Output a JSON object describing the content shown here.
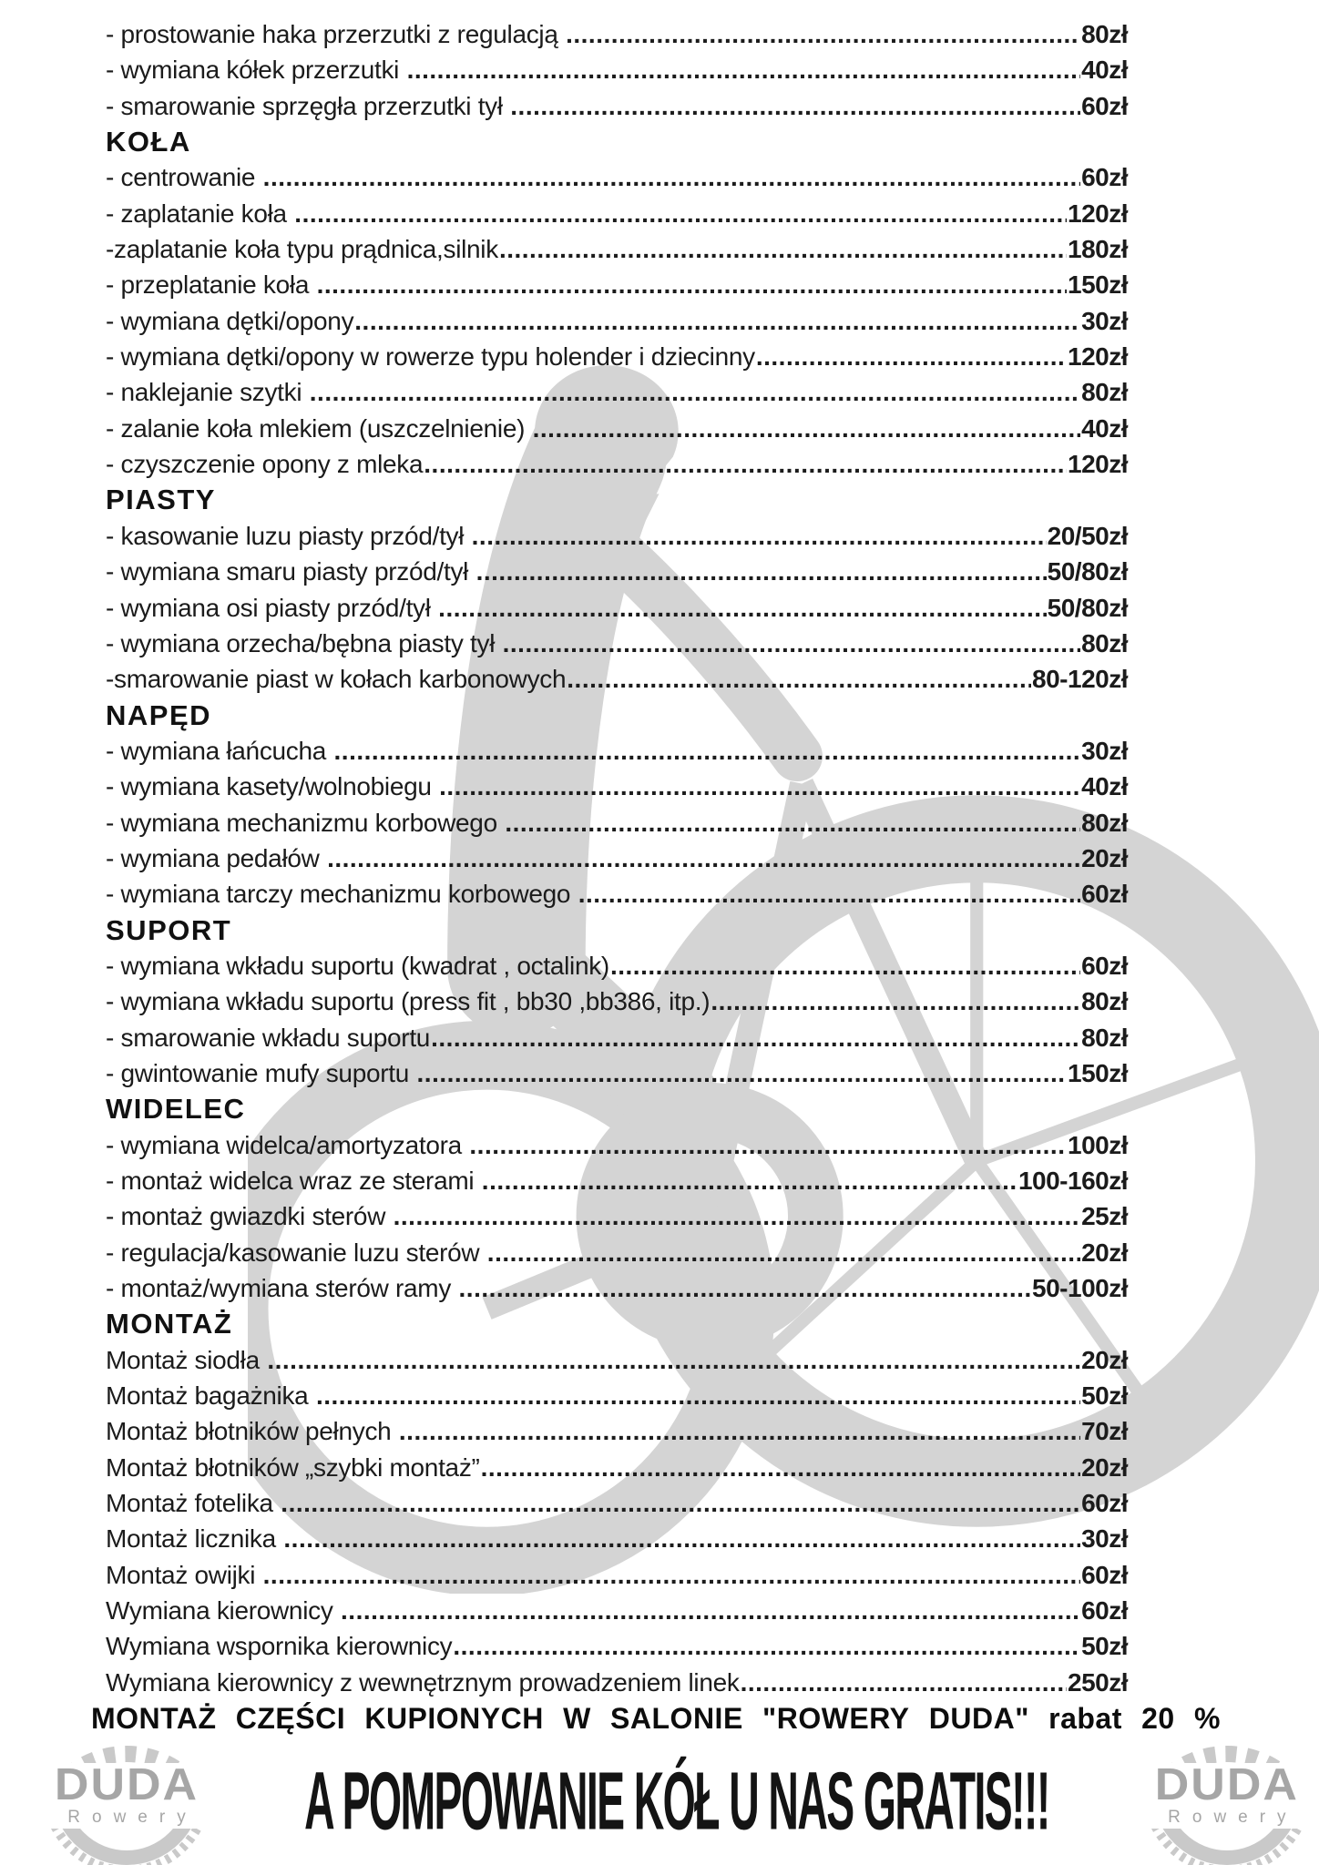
{
  "colors": {
    "text": "#1b1b1b",
    "watermark_gray": "#d4d4d4",
    "logo_gray": "#a6a6a6",
    "chainring_gray": "#c9c9c9"
  },
  "price_list": {
    "sections": [
      {
        "header": "",
        "items": [
          {
            "label": "- prostowanie haka przerzutki z regulacją ",
            "price": "80zł"
          },
          {
            "label": "- wymiana kółek przerzutki ",
            "price": "40zł"
          },
          {
            "label": "- smarowanie sprzęgła przerzutki tył ",
            "price": "60zł"
          }
        ]
      },
      {
        "header": "KOŁA",
        "items": [
          {
            "label": "- centrowanie ",
            "price": "60zł"
          },
          {
            "label": "- zaplatanie koła ",
            "price": "120zł"
          },
          {
            "label": "-zaplatanie koła typu prądnica,silnik",
            "price": "180zł"
          },
          {
            "label": "- przeplatanie koła ",
            "price": "150zł"
          },
          {
            "label": "- wymiana dętki/opony",
            "price": "30zł"
          },
          {
            "label": "- wymiana dętki/opony w rowerze typu holender i dziecinny",
            "price": "120zł"
          },
          {
            "label": "- naklejanie szytki ",
            "price": "80zł"
          },
          {
            "label": "- zalanie koła mlekiem (uszczelnienie) ",
            "price": "40zł"
          },
          {
            "label": "- czyszczenie opony z mleka",
            "price": "120zł"
          }
        ]
      },
      {
        "header": "PIASTY",
        "items": [
          {
            "label": "- kasowanie luzu piasty przód/tył ",
            "price": "20/50zł"
          },
          {
            "label": "- wymiana smaru piasty przód/tył ",
            "price": "50/80zł"
          },
          {
            "label": "- wymiana osi piasty przód/tył ",
            "price": "50/80zł"
          },
          {
            "label": "- wymiana orzecha/bębna piasty tył ",
            "price": "80zł"
          },
          {
            "label": "-smarowanie piast w kołach karbonowych",
            "price": "80-120zł"
          }
        ]
      },
      {
        "header": "NAPĘD",
        "items": [
          {
            "label": "- wymiana łańcucha ",
            "price": "30zł"
          },
          {
            "label": "- wymiana kasety/wolnobiegu ",
            "price": "40zł"
          },
          {
            "label": "- wymiana mechanizmu korbowego ",
            "price": "80zł"
          },
          {
            "label": "- wymiana pedałów ",
            "price": "20zł"
          },
          {
            "label": "- wymiana tarczy mechanizmu korbowego ",
            "price": "60zł"
          }
        ]
      },
      {
        "header": "SUPORT",
        "items": [
          {
            "label": "- wymiana wkładu suportu (kwadrat , octalink)",
            "price": "60zł"
          },
          {
            "label": "- wymiana wkładu suportu (press fit , bb30 ,bb386, itp.)",
            "price": "80zł"
          },
          {
            "label": "- smarowanie wkładu suportu",
            "price": "80zł"
          },
          {
            "label": "- gwintowanie mufy suportu ",
            "price": "150zł"
          }
        ]
      },
      {
        "header": "WIDELEC",
        "items": [
          {
            "label": "- wymiana widelca/amortyzatora ",
            "price": "100zł"
          },
          {
            "label": "- montaż widelca wraz ze sterami ",
            "price": "100-160zł"
          },
          {
            "label": "- montaż gwiazdki sterów ",
            "price": "25zł"
          },
          {
            "label": "- regulacja/kasowanie luzu sterów ",
            "price": "20zł"
          },
          {
            "label": "- montaż/wymiana sterów ramy ",
            "price": "50-100zł"
          }
        ]
      },
      {
        "header": "MONTAŻ",
        "items": [
          {
            "label": "Montaż siodła ",
            "price": "20zł"
          },
          {
            "label": "Montaż bagażnika ",
            "price": "50zł"
          },
          {
            "label": "Montaż błotników pełnych ",
            "price": "70zł"
          },
          {
            "label": "Montaż błotników „szybki montaż”",
            "price": "20zł"
          },
          {
            "label": "Montaż fotelika ",
            "price": "60zł"
          },
          {
            "label": "Montaż licznika ",
            "price": "30zł"
          },
          {
            "label": "Montaż owijki ",
            "price": "60zł"
          },
          {
            "label": "Wymiana kierownicy ",
            "price": "60zł"
          },
          {
            "label": "Wymiana wspornika kierownicy",
            "price": "50zł"
          },
          {
            "label": "Wymiana kierownicy z wewnętrznym prowadzeniem linek",
            "price": "250zł"
          }
        ]
      }
    ]
  },
  "discount_note": "MONTAŻ CZĘŚCI KUPIONYCH W SALONIE \"ROWERY DUDA\" rabat 20 %",
  "footer": {
    "promo": "A POMPOWANIE KÓŁ U NAS GRATIS!!!",
    "logo": {
      "brand": "DUDA",
      "sub": "Rowery"
    }
  }
}
